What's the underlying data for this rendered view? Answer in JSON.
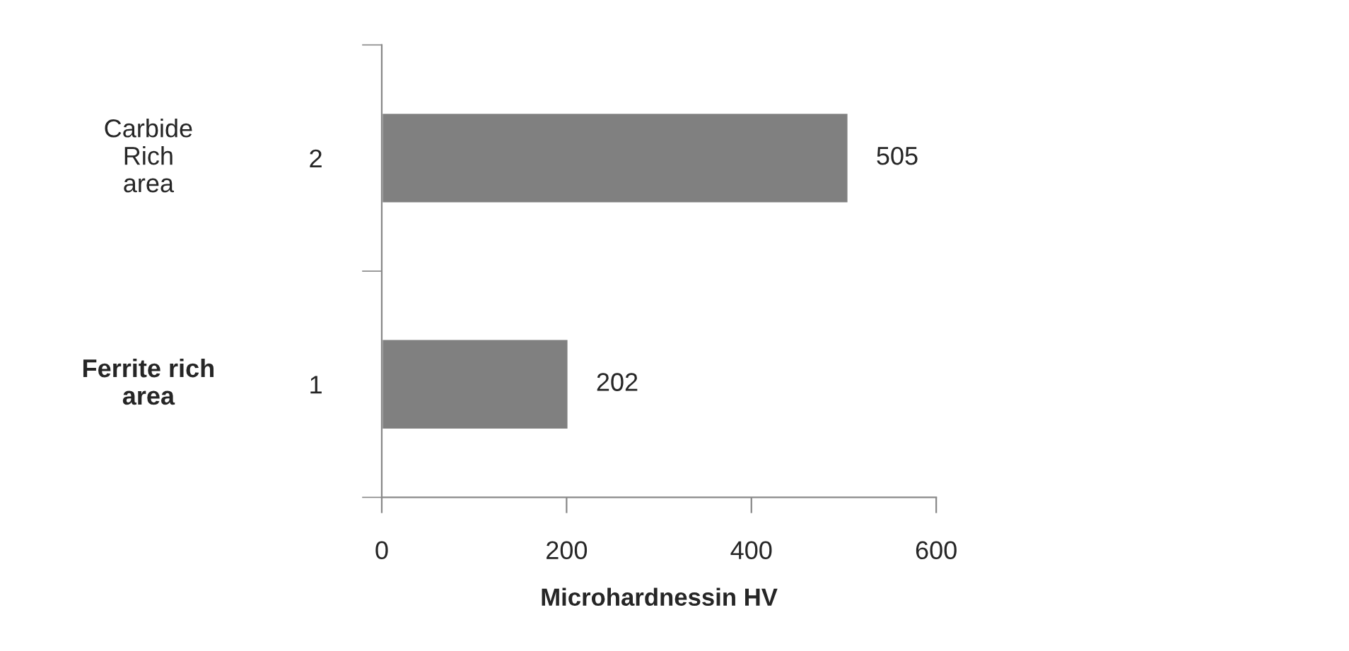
{
  "chart_data": {
    "type": "bar",
    "orientation": "horizontal",
    "categories": [
      "2",
      "1"
    ],
    "values": [
      505,
      202
    ],
    "color": "#808080",
    "xlim": [
      0,
      600
    ],
    "xticks": [
      0,
      200,
      400,
      600
    ],
    "xlabel": "Microhardnessin HV",
    "data_labels": true,
    "grid": false,
    "legend": false,
    "annotations": [
      "Carbide\nRich\narea",
      "Ferrite rich\narea"
    ]
  }
}
